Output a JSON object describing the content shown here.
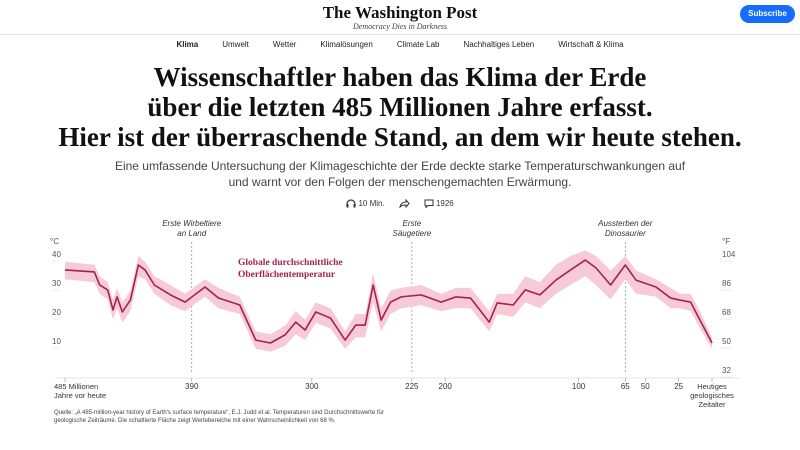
{
  "header": {
    "logo": "The Washington Post",
    "tagline": "Democracy Dies in Darkness",
    "subscribe": "Subscribe"
  },
  "nav": [
    "Klima",
    "Umwelt",
    "Wetter",
    "Klimalösungen",
    "Climate Lab",
    "Nachhaltiges Leben",
    "Wirtschaft & Klima"
  ],
  "headline": [
    "Wissenschaftler haben das Klima der Erde",
    "über die letzten 485 Millionen Jahre erfasst.",
    "Hier ist der überraschende Stand, an dem wir heute stehen."
  ],
  "dek": [
    "Eine umfassende Untersuchung der Klimageschichte der Erde deckte starke Temperaturschwankungen auf",
    "und warnt vor den Folgen der menschengemachten Erwärmung."
  ],
  "meta": {
    "read_time": "10 Min.",
    "comments": "1926"
  },
  "chart_data": {
    "type": "line",
    "y_unit": "°C",
    "y2_unit": "°F",
    "xlim": [
      485,
      0
    ],
    "ylim": [
      0,
      45
    ],
    "y2lim": [
      32,
      113
    ],
    "xticks": [
      {
        "value": 485,
        "label": "485 Millionen Jahre vor heute"
      },
      390,
      300,
      225,
      200,
      100,
      65,
      50,
      25,
      {
        "value": 0,
        "label": "Heutiges geologisches Zeitalter"
      }
    ],
    "yticks": [
      10,
      20,
      30,
      40
    ],
    "y2ticks": [
      32,
      50,
      68,
      86,
      104
    ],
    "grid": false,
    "x": [
      485,
      463,
      459,
      453,
      449,
      446,
      442,
      436,
      430,
      425,
      418,
      406,
      395,
      380,
      370,
      354,
      342,
      331,
      320,
      312,
      305,
      297,
      286,
      275,
      267,
      260,
      254,
      248,
      241,
      233,
      218,
      203,
      192,
      181,
      167,
      161,
      149,
      140,
      129,
      117,
      106,
      95,
      87,
      76,
      65,
      57,
      42,
      31,
      24,
      16,
      9,
      0
    ],
    "series": [
      {
        "name": "Globale durchschnittliche Oberflächentemperatur",
        "color": "#a3224f",
        "band_color": "#f6cbd6",
        "values": [
          35.2,
          34.5,
          30,
          28.3,
          21.4,
          25.9,
          20.7,
          24.8,
          36.9,
          35.2,
          30,
          26.6,
          24.1,
          29.3,
          25.5,
          23.1,
          11,
          10,
          12.8,
          17.2,
          14.5,
          20.7,
          18.6,
          11,
          16.2,
          16.2,
          30,
          17.9,
          24.1,
          25.9,
          26.6,
          24.1,
          25.9,
          25.5,
          17.2,
          23.8,
          23.1,
          28.3,
          26.6,
          31.7,
          35.2,
          38.6,
          35.9,
          30,
          36.9,
          31.7,
          29.3,
          25.5,
          24.8,
          24.1,
          17.9,
          10
        ],
        "lower": [
          32,
          31,
          27,
          25,
          18,
          22,
          17,
          21,
          33,
          32,
          27,
          23,
          21,
          26,
          22,
          20,
          8,
          7,
          9,
          13,
          11,
          17,
          15,
          8,
          12,
          12,
          24,
          14,
          20,
          22,
          23,
          21,
          22,
          22,
          14,
          20,
          19,
          24,
          22,
          27,
          30,
          33,
          30,
          25,
          32,
          27,
          26,
          22,
          22,
          21,
          15,
          8
        ],
        "upper": [
          38,
          37,
          33,
          31,
          25,
          29,
          24,
          28,
          40,
          38,
          33,
          30,
          27,
          32,
          29,
          26,
          14,
          13,
          16,
          21,
          18,
          24,
          22,
          14,
          20,
          20,
          34,
          22,
          28,
          29,
          30,
          27,
          29,
          29,
          21,
          27,
          27,
          33,
          31,
          37,
          40,
          42,
          40,
          35,
          40,
          35,
          32,
          29,
          27,
          27,
          21,
          12
        ]
      }
    ],
    "annotations": [
      {
        "x": 390,
        "lines": [
          "Erste Wirbeltiere",
          "an Land"
        ]
      },
      {
        "x": 225,
        "lines": [
          "Erste",
          "Säugetiere"
        ]
      },
      {
        "x": 65,
        "lines": [
          "Aussterben der",
          "Dinosaurier"
        ]
      }
    ],
    "source": "Quelle: „A 485-million-year history of Earth's surface temperature“, E.J. Judd et al. Temperaturen sind Durchschnittswerte für geologische Zeiträume. Die schattierte Fläche zeigt Wertebereiche mit einer Wahrscheinlichkeit von 68 %."
  }
}
